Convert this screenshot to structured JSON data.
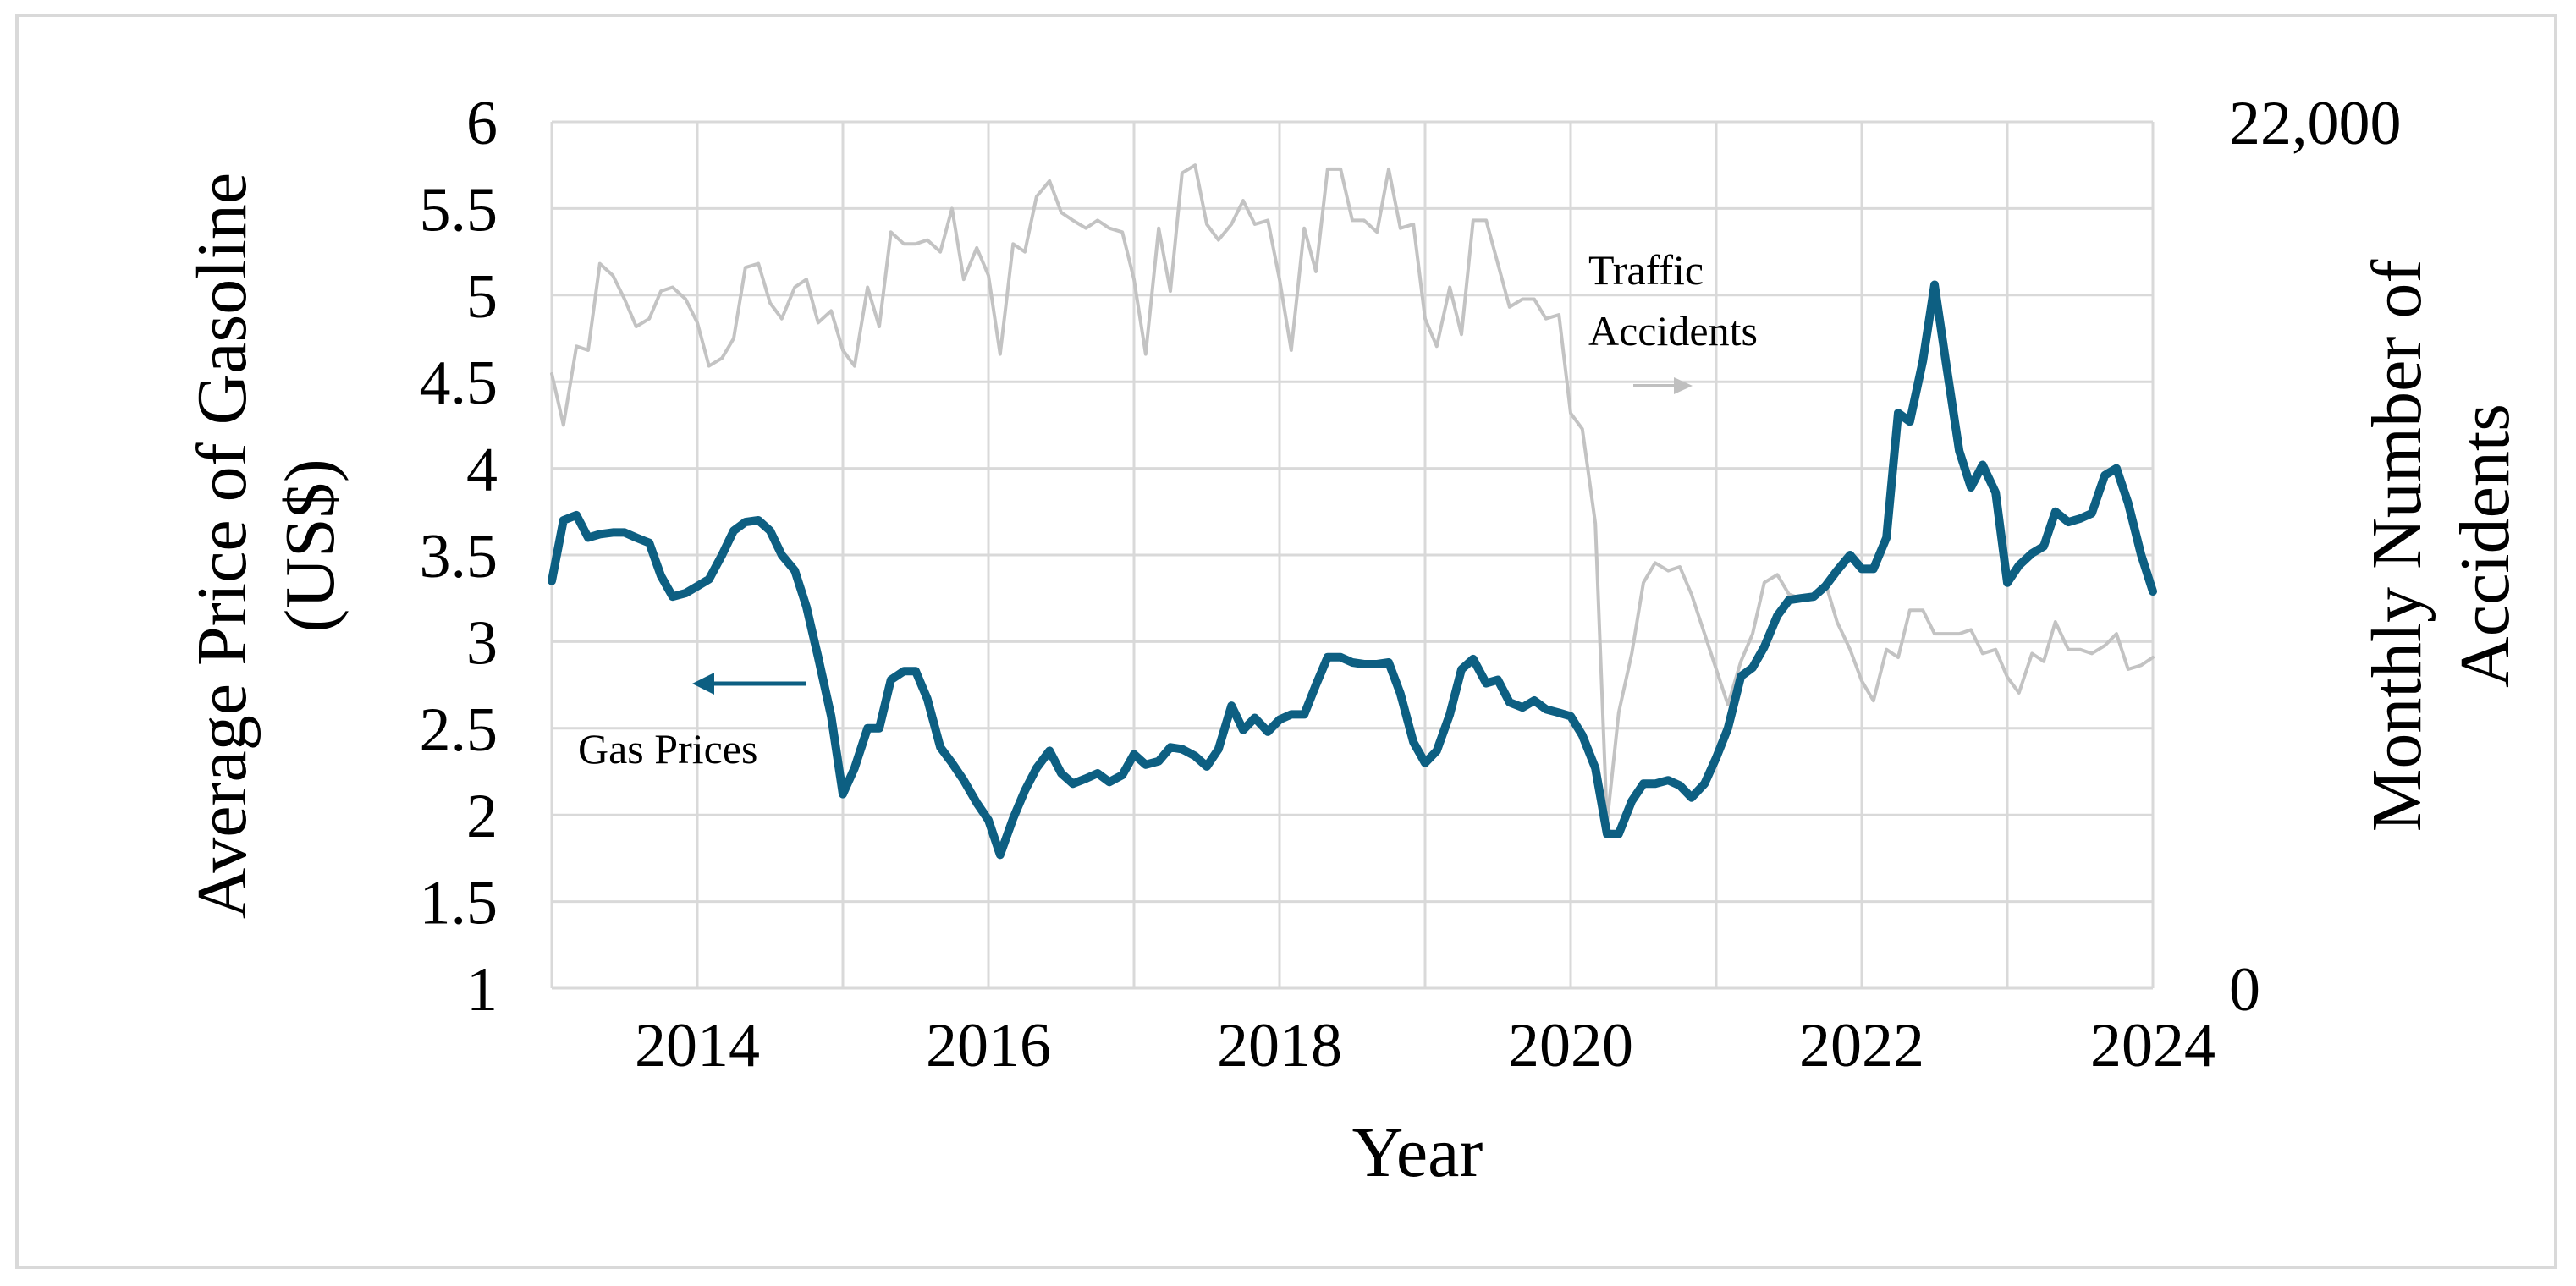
{
  "chart_data": {
    "type": "line",
    "title": "",
    "xlabel": "Year",
    "ylabel_left": "Average Price of Gasoline (US$)",
    "ylabel_left_lines": [
      "Average Price of Gasoline",
      "(US$)"
    ],
    "ylabel_right": "Monthly Number of Accidents",
    "ylabel_right_lines": [
      "Monthly Number of",
      "Accidents"
    ],
    "xlim": [
      2013.0,
      2024.0
    ],
    "xticks": [
      2014,
      2016,
      2018,
      2020,
      2022,
      2024
    ],
    "xtick_labels": [
      "2014",
      "2016",
      "2018",
      "2020",
      "2022",
      "2024"
    ],
    "ylim_left": [
      1,
      6
    ],
    "yticks_left": [
      1,
      1.5,
      2,
      2.5,
      3,
      3.5,
      4,
      4.5,
      5,
      5.5,
      6
    ],
    "ytick_labels_left": [
      "1",
      "1.5",
      "2",
      "2.5",
      "3",
      "3.5",
      "4",
      "4.5",
      "5",
      "5.5",
      "6"
    ],
    "ylim_right": [
      0,
      22000
    ],
    "ytick_labels_right": [
      "0",
      "22,000"
    ],
    "yticks_right": [
      0,
      22000
    ],
    "grid": true,
    "series": [
      {
        "name": "Gas Prices",
        "axis": "left",
        "color": "#0d5f82",
        "x": [
          2013.0,
          2013.08,
          2013.17,
          2013.25,
          2013.33,
          2013.42,
          2013.5,
          2013.58,
          2013.67,
          2013.75,
          2013.83,
          2013.92,
          2014.0,
          2014.08,
          2014.17,
          2014.25,
          2014.33,
          2014.42,
          2014.5,
          2014.58,
          2014.67,
          2014.75,
          2014.83,
          2014.92,
          2015.0,
          2015.08,
          2015.17,
          2015.25,
          2015.33,
          2015.42,
          2015.5,
          2015.58,
          2015.67,
          2015.75,
          2015.83,
          2015.92,
          2016.0,
          2016.08,
          2016.17,
          2016.25,
          2016.33,
          2016.42,
          2016.5,
          2016.58,
          2016.67,
          2016.75,
          2016.83,
          2016.92,
          2017.0,
          2017.08,
          2017.17,
          2017.25,
          2017.33,
          2017.42,
          2017.5,
          2017.58,
          2017.67,
          2017.75,
          2017.83,
          2017.92,
          2018.0,
          2018.08,
          2018.17,
          2018.25,
          2018.33,
          2018.42,
          2018.5,
          2018.58,
          2018.67,
          2018.75,
          2018.83,
          2018.92,
          2019.0,
          2019.08,
          2019.17,
          2019.25,
          2019.33,
          2019.42,
          2019.5,
          2019.58,
          2019.67,
          2019.75,
          2019.83,
          2019.92,
          2020.0,
          2020.08,
          2020.17,
          2020.25,
          2020.33,
          2020.42,
          2020.5,
          2020.58,
          2020.67,
          2020.75,
          2020.83,
          2020.92,
          2021.0,
          2021.08,
          2021.17,
          2021.25,
          2021.33,
          2021.42,
          2021.5,
          2021.58,
          2021.67,
          2021.75,
          2021.83,
          2021.92,
          2022.0,
          2022.08,
          2022.17,
          2022.25,
          2022.33,
          2022.42,
          2022.5,
          2022.58,
          2022.67,
          2022.75,
          2022.83,
          2022.92,
          2023.0,
          2023.08,
          2023.17,
          2023.25,
          2023.33,
          2023.42,
          2023.5,
          2023.58,
          2023.67,
          2023.75,
          2023.83,
          2023.92,
          2024.0
        ],
        "values": [
          3.35,
          3.7,
          3.73,
          3.6,
          3.62,
          3.63,
          3.63,
          3.6,
          3.57,
          3.38,
          3.26,
          3.28,
          3.32,
          3.36,
          3.5,
          3.64,
          3.69,
          3.7,
          3.64,
          3.5,
          3.41,
          3.2,
          2.91,
          2.57,
          2.12,
          2.27,
          2.5,
          2.5,
          2.78,
          2.83,
          2.83,
          2.67,
          2.39,
          2.3,
          2.2,
          2.07,
          1.97,
          1.77,
          1.98,
          2.14,
          2.27,
          2.37,
          2.24,
          2.18,
          2.21,
          2.24,
          2.19,
          2.23,
          2.35,
          2.29,
          2.31,
          2.39,
          2.38,
          2.34,
          2.28,
          2.38,
          2.63,
          2.49,
          2.56,
          2.48,
          2.55,
          2.58,
          2.58,
          2.75,
          2.91,
          2.91,
          2.88,
          2.87,
          2.87,
          2.88,
          2.7,
          2.42,
          2.3,
          2.37,
          2.58,
          2.84,
          2.9,
          2.76,
          2.78,
          2.65,
          2.62,
          2.66,
          2.61,
          2.59,
          2.57,
          2.46,
          2.27,
          1.89,
          1.89,
          2.08,
          2.18,
          2.18,
          2.2,
          2.17,
          2.1,
          2.18,
          2.33,
          2.5,
          2.8,
          2.85,
          2.97,
          3.15,
          3.24,
          3.25,
          3.26,
          3.32,
          3.41,
          3.5,
          3.42,
          3.42,
          3.6,
          4.32,
          4.27,
          4.62,
          5.06,
          4.6,
          4.1,
          3.89,
          4.02,
          3.86,
          3.34,
          3.44,
          3.51,
          3.55,
          3.75,
          3.69,
          3.71,
          3.74,
          3.96,
          4.0,
          3.8,
          3.5,
          3.29
        ]
      },
      {
        "name": "Traffic Accidents",
        "axis": "right",
        "color": "#c3c3c3",
        "x": [
          2013.0,
          2013.08,
          2013.17,
          2013.25,
          2013.33,
          2013.42,
          2013.5,
          2013.58,
          2013.67,
          2013.75,
          2013.83,
          2013.92,
          2014.0,
          2014.08,
          2014.17,
          2014.25,
          2014.33,
          2014.42,
          2014.5,
          2014.58,
          2014.67,
          2014.75,
          2014.83,
          2014.92,
          2015.0,
          2015.08,
          2015.17,
          2015.25,
          2015.33,
          2015.42,
          2015.5,
          2015.58,
          2015.67,
          2015.75,
          2015.83,
          2015.92,
          2016.0,
          2016.08,
          2016.17,
          2016.25,
          2016.33,
          2016.42,
          2016.5,
          2016.58,
          2016.67,
          2016.75,
          2016.83,
          2016.92,
          2017.0,
          2017.08,
          2017.17,
          2017.25,
          2017.33,
          2017.42,
          2017.5,
          2017.58,
          2017.67,
          2017.75,
          2017.83,
          2017.92,
          2018.0,
          2018.08,
          2018.17,
          2018.25,
          2018.33,
          2018.42,
          2018.5,
          2018.58,
          2018.67,
          2018.75,
          2018.83,
          2018.92,
          2019.0,
          2019.08,
          2019.17,
          2019.25,
          2019.33,
          2019.42,
          2019.5,
          2019.58,
          2019.67,
          2019.75,
          2019.83,
          2019.92,
          2020.0,
          2020.08,
          2020.17,
          2020.25,
          2020.33,
          2020.42,
          2020.5,
          2020.58,
          2020.67,
          2020.75,
          2020.83,
          2020.92,
          2021.0,
          2021.08,
          2021.17,
          2021.25,
          2021.33,
          2021.42,
          2021.5,
          2021.58,
          2021.67,
          2021.75,
          2021.83,
          2021.92,
          2022.0,
          2022.08,
          2022.17,
          2022.25,
          2022.33,
          2022.42,
          2022.5,
          2022.58,
          2022.67,
          2022.75,
          2022.83,
          2022.92,
          2023.0,
          2023.08,
          2023.17,
          2023.25,
          2023.33,
          2023.42,
          2023.5,
          2023.58,
          2023.67,
          2023.75,
          2023.83,
          2023.92,
          2024.0
        ],
        "values": [
          15600,
          14300,
          16300,
          16200,
          18400,
          18100,
          17500,
          16800,
          17000,
          17700,
          17800,
          17500,
          16900,
          15800,
          16000,
          16500,
          18300,
          18400,
          17400,
          17000,
          17800,
          18000,
          16900,
          17200,
          16200,
          15800,
          17800,
          16800,
          19200,
          18900,
          18900,
          19000,
          18700,
          19800,
          18000,
          18800,
          18100,
          16100,
          18900,
          18700,
          20100,
          20500,
          19700,
          19500,
          19300,
          19500,
          19300,
          19200,
          18000,
          16100,
          19300,
          17700,
          20700,
          20900,
          19400,
          19000,
          19400,
          20000,
          19400,
          19500,
          18000,
          16200,
          19300,
          18200,
          20800,
          20800,
          19500,
          19500,
          19200,
          20800,
          19300,
          19400,
          17000,
          16300,
          17800,
          16600,
          19500,
          19500,
          18400,
          17300,
          17500,
          17500,
          17000,
          17100,
          14600,
          14200,
          11800,
          4200,
          7000,
          8500,
          10300,
          10800,
          10600,
          10700,
          10000,
          9000,
          8100,
          7200,
          8300,
          9000,
          10300,
          10500,
          10000,
          9900,
          10000,
          10300,
          9300,
          8600,
          7800,
          7300,
          8600,
          8400,
          9600,
          9600,
          9000,
          9000,
          9000,
          9100,
          8500,
          8600,
          7900,
          7500,
          8500,
          8300,
          9300,
          8600,
          8600,
          8500,
          8700,
          9000,
          8100,
          8200,
          8400
        ]
      }
    ],
    "annotations": [
      {
        "text_lines": [
          "Gas Prices"
        ],
        "arrow": "left",
        "series": "Gas Prices"
      },
      {
        "text_lines": [
          "Traffic",
          "Accidents"
        ],
        "arrow": "right",
        "series": "Traffic Accidents"
      }
    ]
  }
}
